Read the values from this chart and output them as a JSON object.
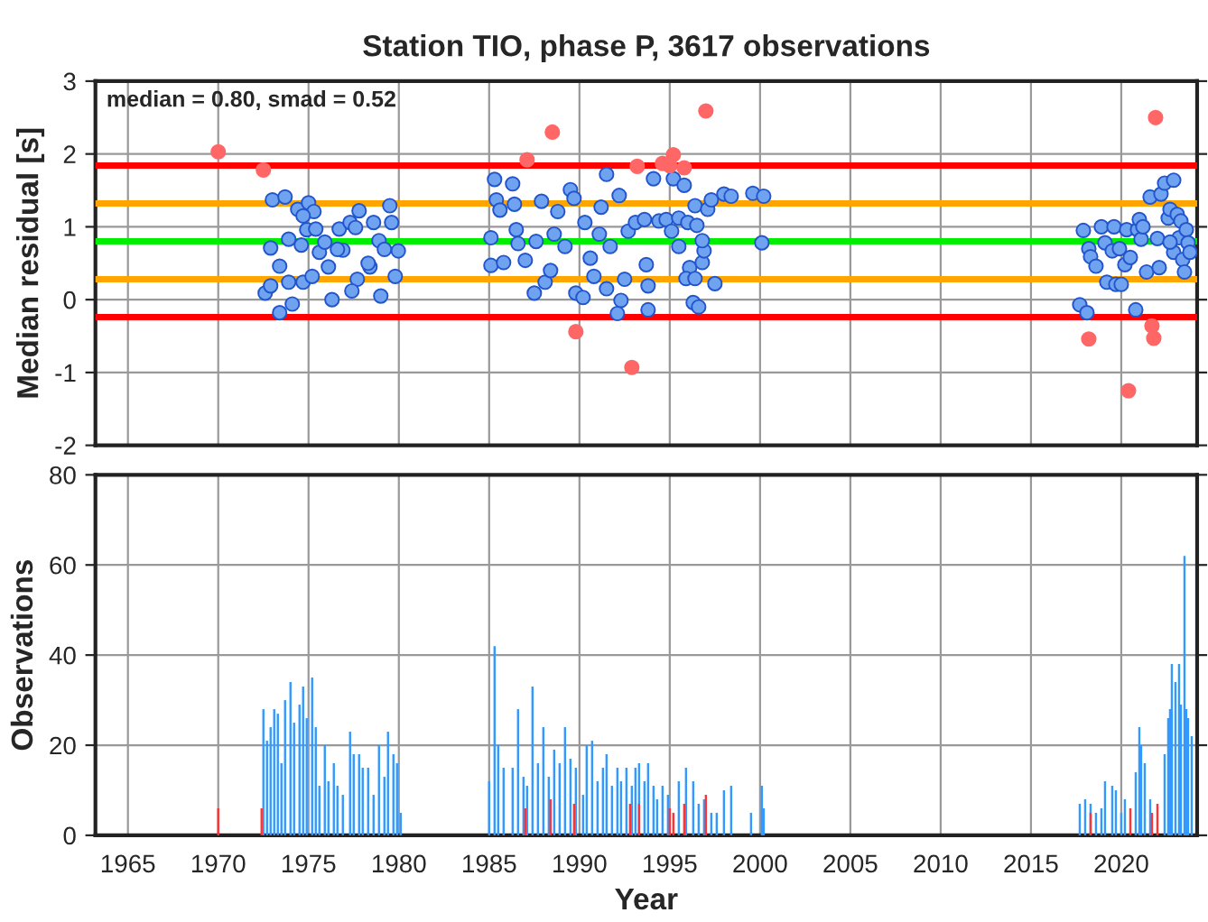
{
  "chart_data": [
    {
      "type": "scatter",
      "title": "Station TIO, phase P, 3617 observations",
      "ylabel": "Median residual [s]",
      "annotations": [
        "median = 0.80, smad = 0.52"
      ],
      "xlim": [
        1963.2,
        2024.2
      ],
      "xticks": [
        1965,
        1970,
        1975,
        1980,
        1985,
        1990,
        1995,
        2000,
        2005,
        2010,
        2015,
        2020
      ],
      "ylim": [
        -2,
        3
      ],
      "yticks": [
        -2,
        -1,
        0,
        1,
        2,
        3
      ],
      "grid": true,
      "tick_labels": "y",
      "marker": "circle",
      "ref_lines": [
        {
          "axis": "y",
          "value": 0.8,
          "color": "#00ee00"
        },
        {
          "axis": "y",
          "value": 1.32,
          "color": "#ffa500"
        },
        {
          "axis": "y",
          "value": 0.28,
          "color": "#ffa500"
        },
        {
          "axis": "y",
          "value": 1.84,
          "color": "#ff0000"
        },
        {
          "axis": "y",
          "value": -0.24,
          "color": "#ff0000"
        }
      ],
      "series": [
        {
          "color": "#6fa3ef",
          "x": [
            1973.0,
            1973.7,
            1974.4,
            1975.0,
            1975.3,
            1974.9,
            1972.9,
            1973.4,
            1972.6,
            1972.9,
            1973.4,
            1974.1,
            1973.9,
            1974.6,
            1975.6,
            1976.3,
            1976.7,
            1977.3,
            1977.8,
            1977.6,
            1976.9,
            1977.7,
            1977.4,
            1978.6,
            1978.9,
            1979.2,
            1979.5,
            1979.6,
            1979.97,
            1979.8,
            1979.0,
            1978.4,
            1976.1,
            1973.9,
            1974.7,
            1975.2,
            1975.9,
            1976.6,
            1975.4,
            1978.3,
            1974.7,
            1985.3,
            1985.1,
            1985.1,
            1985.4,
            1985.6,
            1985.8,
            1986.3,
            1986.4,
            1986.5,
            1986.6,
            1987.0,
            1987.5,
            1987.6,
            1987.9,
            1988.1,
            1988.4,
            1988.6,
            1988.8,
            1989.5,
            1989.7,
            1989.2,
            1989.8,
            1990.2,
            1990.3,
            1990.6,
            1990.8,
            1991.1,
            1991.2,
            1991.5,
            1991.5,
            1991.7,
            1992.2,
            1992.1,
            1992.3,
            1992.5,
            1992.7,
            1993.1,
            1993.6,
            1993.7,
            1993.8,
            1993.8,
            1994.1,
            1994.4,
            1994.8,
            1995.1,
            1995.2,
            1995.5,
            1995.5,
            1995.8,
            1996.0,
            1996.1,
            1996.3,
            1996.6,
            1996.4,
            1996.5,
            1996.8,
            1996.9,
            1996.8,
            1997.1,
            1997.3,
            1997.5,
            1998.0,
            1998.4,
            1999.6,
            2000.2,
            2000.1,
            1995.9,
            1996.4,
            2017.7,
            2018.1,
            2017.9,
            2018.2,
            2018.3,
            2018.6,
            2018.9,
            2019.1,
            2019.2,
            2019.5,
            2019.6,
            2019.7,
            2019.9,
            2020.0,
            2020.2,
            2020.3,
            2020.5,
            2020.8,
            2020.9,
            2021.0,
            2021.1,
            2021.2,
            2021.4,
            2021.6,
            2022.0,
            2022.1,
            2022.2,
            2022.4,
            2022.6,
            2022.7,
            2022.9,
            2022.9,
            2023.1,
            2023.2,
            2023.3,
            2023.4,
            2023.5,
            2023.6,
            2023.7,
            2023.8,
            2022.7
          ],
          "values": [
            1.37,
            1.41,
            1.24,
            1.33,
            1.21,
            0.96,
            0.71,
            0.46,
            0.09,
            0.19,
            -0.18,
            -0.06,
            0.83,
            0.75,
            0.65,
            0.0,
            0.97,
            1.06,
            1.22,
            0.99,
            0.68,
            0.28,
            0.12,
            1.06,
            0.81,
            0.69,
            1.29,
            1.06,
            0.67,
            0.32,
            0.05,
            0.45,
            0.45,
            0.24,
            0.24,
            0.32,
            0.79,
            0.69,
            0.97,
            0.5,
            1.15,
            1.65,
            0.85,
            0.47,
            1.37,
            1.23,
            0.51,
            1.59,
            1.31,
            0.96,
            0.77,
            0.54,
            0.09,
            0.8,
            1.35,
            0.24,
            0.4,
            0.9,
            1.21,
            1.51,
            1.39,
            0.73,
            0.09,
            0.03,
            1.06,
            0.57,
            0.32,
            0.9,
            1.27,
            1.72,
            0.15,
            0.73,
            1.43,
            -0.19,
            -0.01,
            0.28,
            0.94,
            1.06,
            1.1,
            0.48,
            0.19,
            -0.14,
            1.66,
            1.08,
            1.1,
            0.94,
            1.66,
            1.12,
            0.73,
            1.57,
            1.06,
            0.44,
            -0.04,
            -0.1,
            1.29,
            1.02,
            0.51,
            0.67,
            0.81,
            1.24,
            1.37,
            0.22,
            1.45,
            1.42,
            1.46,
            1.42,
            0.78,
            0.29,
            0.29,
            -0.07,
            -0.18,
            0.95,
            0.7,
            0.59,
            0.46,
            1.0,
            0.78,
            0.24,
            0.67,
            1.0,
            0.21,
            0.7,
            0.21,
            0.48,
            0.96,
            0.58,
            -0.14,
            0.96,
            1.1,
            0.83,
            1.0,
            0.38,
            1.41,
            0.84,
            0.44,
            1.45,
            1.6,
            1.12,
            1.24,
            1.64,
            0.65,
            1.17,
            0.85,
            1.08,
            0.55,
            0.38,
            0.96,
            0.78,
            0.65,
            0.79
          ]
        },
        {
          "color": "#ff6666",
          "x": [
            1970.0,
            1972.5,
            1988.5,
            1987.1,
            1993.2,
            1989.8,
            1992.9,
            1997.0,
            1994.6,
            1995.2,
            1995.0,
            1995.8,
            2021.9,
            2018.2,
            2020.4,
            2021.7,
            2021.8
          ],
          "values": [
            2.03,
            1.78,
            2.3,
            1.92,
            1.83,
            -0.44,
            -0.93,
            2.59,
            1.87,
            1.99,
            1.84,
            1.81,
            2.5,
            -0.54,
            -1.25,
            -0.36,
            -0.53
          ]
        }
      ]
    },
    {
      "type": "bar",
      "xlabel": "Year",
      "ylabel": "Observations",
      "xlim": [
        1963.2,
        2024.2
      ],
      "xticks": [
        1965,
        1970,
        1975,
        1980,
        1985,
        1990,
        1995,
        2000,
        2005,
        2010,
        2015,
        2020
      ],
      "ylim": [
        0,
        80
      ],
      "yticks": [
        0,
        20,
        40,
        60,
        80
      ],
      "grid": true,
      "series": [
        {
          "color": "#3399ff",
          "x": [
            1972.5,
            1972.7,
            1972.9,
            1973.1,
            1973.3,
            1973.5,
            1973.7,
            1974.0,
            1974.2,
            1974.5,
            1974.7,
            1974.9,
            1975.2,
            1975.4,
            1975.6,
            1975.9,
            1976.1,
            1976.4,
            1976.6,
            1976.9,
            1977.3,
            1977.5,
            1977.8,
            1978.0,
            1978.3,
            1978.6,
            1978.9,
            1979.2,
            1979.4,
            1979.7,
            1979.9,
            1980.1,
            1985.0,
            1985.3,
            1985.5,
            1985.8,
            1986.3,
            1986.6,
            1986.9,
            1987.1,
            1987.4,
            1987.7,
            1988.0,
            1988.3,
            1988.6,
            1988.9,
            1989.2,
            1989.5,
            1989.8,
            1990.2,
            1990.4,
            1990.7,
            1991.0,
            1991.3,
            1991.5,
            1991.8,
            1992.1,
            1992.3,
            1992.6,
            1992.9,
            1993.1,
            1993.3,
            1993.6,
            1993.8,
            1994.1,
            1994.3,
            1994.6,
            1994.9,
            1995.5,
            1995.9,
            1996.3,
            1996.6,
            1996.9,
            1997.3,
            1997.6,
            1998.0,
            1998.4,
            1999.5,
            2000.1,
            2000.2,
            2017.7,
            2018.0,
            2018.3,
            2018.6,
            2018.9,
            2019.1,
            2019.5,
            2019.7,
            2020.0,
            2020.2,
            2020.8,
            2021.0,
            2021.1,
            2021.3,
            2021.6,
            2022.4,
            2022.6,
            2022.7,
            2022.8,
            2023.0,
            2023.2,
            2023.3,
            2023.5,
            2023.6,
            2023.7,
            2023.9
          ],
          "values": [
            28,
            21,
            24,
            28,
            27,
            16,
            30,
            34,
            25,
            29,
            33,
            26,
            35,
            24,
            11,
            20,
            12,
            16,
            11,
            9,
            23,
            18,
            18,
            15,
            15,
            9,
            20,
            13,
            23,
            18,
            16,
            5,
            12,
            42,
            20,
            15,
            15,
            28,
            13,
            11,
            33,
            16,
            24,
            13,
            19,
            16,
            24,
            17,
            15,
            9,
            20,
            21,
            12,
            15,
            18,
            11,
            15,
            12,
            15,
            11,
            15,
            16,
            12,
            16,
            11,
            8,
            11,
            9,
            12,
            15,
            12,
            7,
            8,
            5,
            5,
            10,
            11,
            5,
            11,
            6,
            7,
            8,
            7,
            5,
            6,
            12,
            11,
            10,
            5,
            8,
            14,
            24,
            20,
            16,
            8,
            18,
            26,
            28,
            38,
            34,
            38,
            29,
            62,
            28,
            26,
            22
          ]
        },
        {
          "color": "#ff3333",
          "x": [
            1970.0,
            1972.4,
            1987.0,
            1988.4,
            1989.7,
            1992.8,
            1993.3,
            1995.0,
            1995.2,
            1995.8,
            1997.0,
            2018.3,
            2020.5,
            2021.7,
            2022.0
          ],
          "values": [
            6,
            6,
            6,
            8,
            7,
            7,
            7,
            6,
            5,
            7,
            9,
            5,
            6,
            5,
            7
          ]
        }
      ]
    }
  ]
}
